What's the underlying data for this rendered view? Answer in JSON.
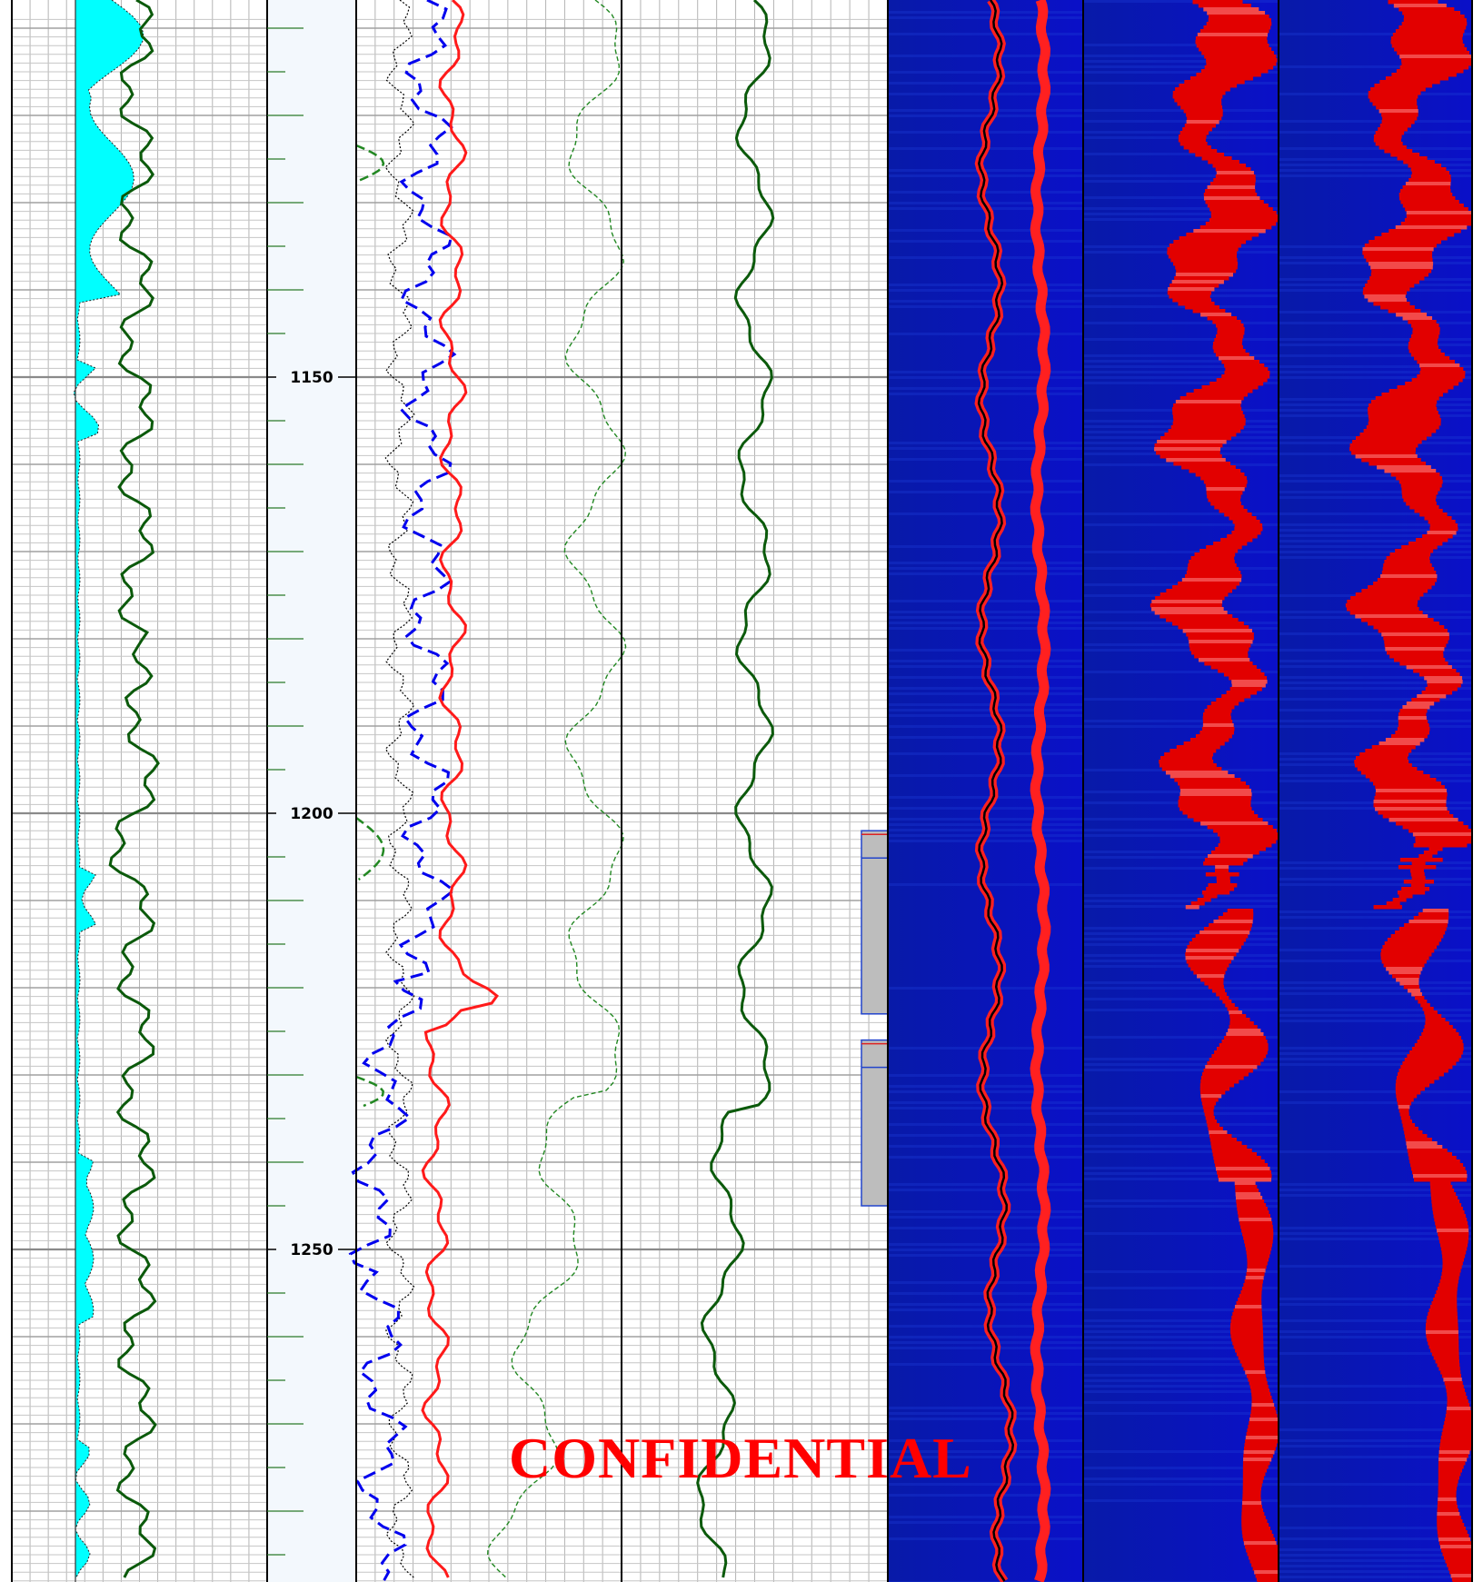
{
  "watermark": "CONFIDENTIAL",
  "colors": {
    "gamma_fill": "#00ffff",
    "green_curve": "#0b5a0b",
    "red_curve": "#ff1a1a",
    "blue_curve": "#0000ee",
    "image_low": "#0a0ad0",
    "image_high": "#e00000",
    "depth_track_bg": "#f3f8fd",
    "core_box": "#bdbdbd"
  },
  "chart_data": {
    "type": "well-log",
    "depth_axis": {
      "range": [
        1109,
        1290
      ],
      "ticks": [
        1150,
        1200,
        1250
      ]
    },
    "tracks": [
      {
        "name": "track1",
        "curves": [
          "gamma-fill-curve",
          "green-curve-1"
        ]
      },
      {
        "name": "depth-track"
      },
      {
        "name": "track3",
        "curves": [
          "black-dotted-curve",
          "blue-dashed-curve",
          "red-curve",
          "green-dashed-curve"
        ]
      },
      {
        "name": "track4",
        "curves": [
          "green-curve-2"
        ]
      },
      {
        "name": "image-tracks",
        "count": 3,
        "color_scale": [
          "blue",
          "white",
          "red"
        ]
      }
    ],
    "core_intervals": [
      [
        1202,
        1223
      ],
      [
        1226,
        1245
      ]
    ]
  }
}
